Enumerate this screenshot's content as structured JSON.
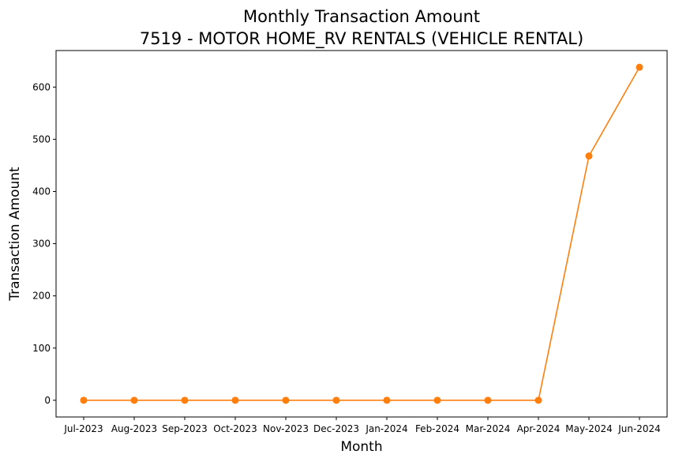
{
  "chart_data": {
    "type": "line",
    "title": "Monthly Transaction Amount",
    "subtitle": "7519 - MOTOR HOME_RV RENTALS (VEHICLE RENTAL)",
    "xlabel": "Month",
    "ylabel": "Transaction Amount",
    "categories": [
      "Jul-2023",
      "Aug-2023",
      "Sep-2023",
      "Oct-2023",
      "Nov-2023",
      "Dec-2023",
      "Jan-2024",
      "Feb-2024",
      "Mar-2024",
      "Apr-2024",
      "May-2024",
      "Jun-2024"
    ],
    "series": [
      {
        "name": "Transaction Amount",
        "color": "#ff7f0e",
        "values": [
          0,
          0,
          0,
          0,
          0,
          0,
          0,
          0,
          0,
          0,
          468,
          638
        ]
      }
    ],
    "ylim": [
      -32,
      670
    ],
    "yticks": [
      0,
      100,
      200,
      300,
      400,
      500,
      600
    ],
    "grid": false,
    "legend": "none"
  }
}
